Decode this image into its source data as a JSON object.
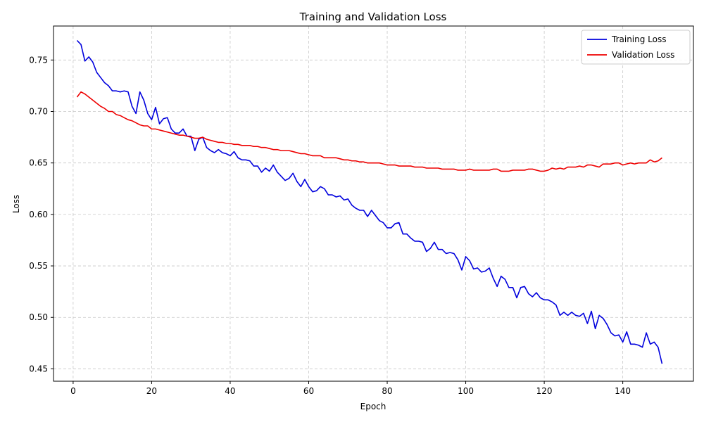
{
  "chart_data": {
    "type": "line",
    "title": "Training and Validation Loss",
    "xlabel": "Epoch",
    "ylabel": "Loss",
    "xlim": [
      -5,
      158
    ],
    "ylim": [
      0.438,
      0.783
    ],
    "xticks": [
      0,
      20,
      40,
      60,
      80,
      100,
      120,
      140
    ],
    "yticks": [
      0.45,
      0.5,
      0.55,
      0.6,
      0.65,
      0.7,
      0.75
    ],
    "grid": true,
    "legend_position": "top-right",
    "x_start": 1,
    "series": [
      {
        "name": "Training Loss",
        "color": "#0000dd",
        "values": [
          0.769,
          0.765,
          0.749,
          0.753,
          0.748,
          0.738,
          0.733,
          0.728,
          0.725,
          0.72,
          0.72,
          0.719,
          0.72,
          0.719,
          0.705,
          0.698,
          0.719,
          0.711,
          0.698,
          0.692,
          0.704,
          0.688,
          0.693,
          0.694,
          0.683,
          0.679,
          0.679,
          0.683,
          0.676,
          0.676,
          0.662,
          0.673,
          0.675,
          0.665,
          0.662,
          0.66,
          0.663,
          0.66,
          0.659,
          0.657,
          0.661,
          0.655,
          0.653,
          0.653,
          0.652,
          0.647,
          0.647,
          0.641,
          0.645,
          0.642,
          0.648,
          0.641,
          0.637,
          0.633,
          0.635,
          0.64,
          0.632,
          0.627,
          0.634,
          0.627,
          0.622,
          0.623,
          0.627,
          0.625,
          0.619,
          0.619,
          0.617,
          0.618,
          0.614,
          0.615,
          0.609,
          0.606,
          0.604,
          0.604,
          0.598,
          0.604,
          0.599,
          0.594,
          0.592,
          0.587,
          0.587,
          0.591,
          0.592,
          0.581,
          0.581,
          0.577,
          0.574,
          0.574,
          0.573,
          0.564,
          0.567,
          0.573,
          0.566,
          0.566,
          0.562,
          0.563,
          0.562,
          0.556,
          0.546,
          0.559,
          0.555,
          0.547,
          0.548,
          0.544,
          0.545,
          0.548,
          0.538,
          0.53,
          0.54,
          0.537,
          0.529,
          0.529,
          0.519,
          0.529,
          0.53,
          0.523,
          0.52,
          0.524,
          0.519,
          0.517,
          0.517,
          0.515,
          0.512,
          0.502,
          0.505,
          0.502,
          0.505,
          0.502,
          0.501,
          0.504,
          0.494,
          0.506,
          0.489,
          0.502,
          0.499,
          0.493,
          0.485,
          0.482,
          0.483,
          0.476,
          0.486,
          0.474,
          0.474,
          0.473,
          0.471,
          0.485,
          0.474,
          0.476,
          0.471,
          0.455
        ]
      },
      {
        "name": "Validation Loss",
        "color": "#ee0000",
        "values": [
          0.714,
          0.719,
          0.717,
          0.714,
          0.711,
          0.708,
          0.705,
          0.703,
          0.7,
          0.7,
          0.697,
          0.696,
          0.694,
          0.692,
          0.691,
          0.689,
          0.687,
          0.686,
          0.686,
          0.683,
          0.683,
          0.682,
          0.681,
          0.68,
          0.679,
          0.678,
          0.677,
          0.677,
          0.676,
          0.675,
          0.674,
          0.674,
          0.675,
          0.673,
          0.672,
          0.671,
          0.67,
          0.67,
          0.669,
          0.669,
          0.668,
          0.668,
          0.667,
          0.667,
          0.667,
          0.666,
          0.666,
          0.665,
          0.665,
          0.664,
          0.663,
          0.663,
          0.662,
          0.662,
          0.662,
          0.661,
          0.66,
          0.659,
          0.659,
          0.658,
          0.657,
          0.657,
          0.657,
          0.655,
          0.655,
          0.655,
          0.655,
          0.654,
          0.653,
          0.653,
          0.652,
          0.652,
          0.651,
          0.651,
          0.65,
          0.65,
          0.65,
          0.65,
          0.649,
          0.648,
          0.648,
          0.648,
          0.647,
          0.647,
          0.647,
          0.647,
          0.646,
          0.646,
          0.646,
          0.645,
          0.645,
          0.645,
          0.645,
          0.644,
          0.644,
          0.644,
          0.644,
          0.643,
          0.643,
          0.643,
          0.644,
          0.643,
          0.643,
          0.643,
          0.643,
          0.643,
          0.644,
          0.644,
          0.642,
          0.642,
          0.642,
          0.643,
          0.643,
          0.643,
          0.643,
          0.644,
          0.644,
          0.643,
          0.642,
          0.642,
          0.643,
          0.645,
          0.644,
          0.645,
          0.644,
          0.646,
          0.646,
          0.646,
          0.647,
          0.646,
          0.648,
          0.648,
          0.647,
          0.646,
          0.649,
          0.649,
          0.649,
          0.65,
          0.65,
          0.648,
          0.649,
          0.65,
          0.649,
          0.65,
          0.65,
          0.65,
          0.653,
          0.651,
          0.652,
          0.655
        ]
      }
    ]
  }
}
